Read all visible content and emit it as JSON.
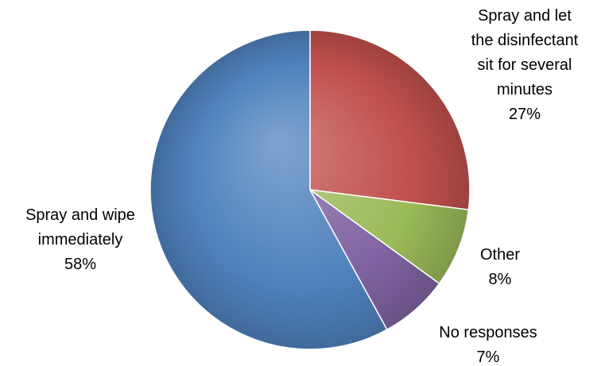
{
  "chart_data": {
    "type": "pie",
    "title": "",
    "slices": [
      {
        "label": [
          "Spray and let",
          "the disinfectant",
          "sit for several",
          "minutes"
        ],
        "value": 27,
        "value_label": "27%",
        "color": "#c0504d"
      },
      {
        "label": [
          "Other"
        ],
        "value": 8,
        "value_label": "8%",
        "color": "#9bbb59"
      },
      {
        "label": [
          "No responses"
        ],
        "value": 7,
        "value_label": "7%",
        "color": "#8064a2"
      },
      {
        "label": [
          "Spray and wipe",
          "immediately"
        ],
        "value": 58,
        "value_label": "58%",
        "color": "#4f81bd"
      }
    ],
    "start_angle_deg": 0,
    "direction": "clockwise",
    "style": "3d-shaded",
    "legend": "none"
  }
}
